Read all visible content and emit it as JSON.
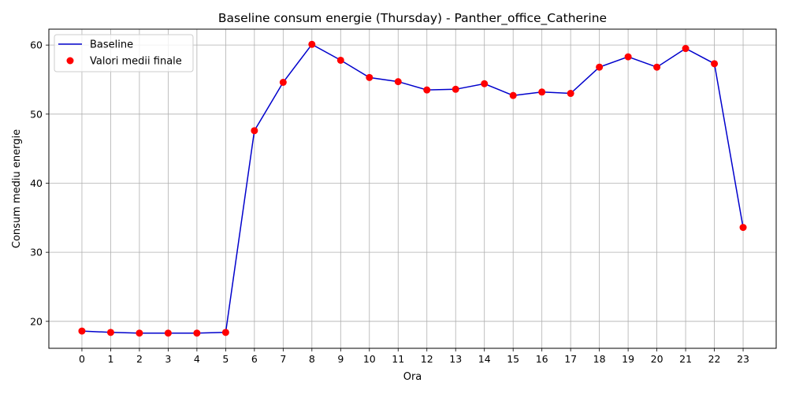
{
  "chart_data": {
    "type": "line",
    "title": "Baseline consum energie (Thursday) - Panther_office_Catherine",
    "xlabel": "Ora",
    "ylabel": "Consum mediu energie",
    "x": [
      0,
      1,
      2,
      3,
      4,
      5,
      6,
      7,
      8,
      9,
      10,
      11,
      12,
      13,
      14,
      15,
      16,
      17,
      18,
      19,
      20,
      21,
      22,
      23
    ],
    "xticks": [
      "0",
      "1",
      "2",
      "3",
      "4",
      "5",
      "6",
      "7",
      "8",
      "9",
      "10",
      "11",
      "12",
      "13",
      "14",
      "15",
      "16",
      "17",
      "18",
      "19",
      "20",
      "21",
      "22",
      "23"
    ],
    "yticks": [
      "20",
      "30",
      "40",
      "50",
      "60"
    ],
    "ytick_values": [
      20,
      30,
      40,
      50,
      60
    ],
    "xlim": [
      -1.15,
      24.15
    ],
    "ylim": [
      16.1,
      62.3
    ],
    "grid": true,
    "legend_position": "top-left",
    "series": [
      {
        "name": "Baseline",
        "kind": "line",
        "color": "#0000cc",
        "values": [
          18.6,
          18.4,
          18.3,
          18.3,
          18.3,
          18.4,
          47.6,
          54.6,
          60.1,
          57.8,
          55.3,
          54.7,
          53.5,
          53.6,
          54.4,
          52.7,
          53.2,
          53.0,
          56.8,
          58.3,
          56.8,
          59.5,
          57.3,
          33.6
        ]
      },
      {
        "name": "Valori medii finale",
        "kind": "scatter",
        "color": "#ff0000",
        "values": [
          18.6,
          18.4,
          18.3,
          18.3,
          18.3,
          18.4,
          47.6,
          54.6,
          60.1,
          57.8,
          55.3,
          54.7,
          53.5,
          53.6,
          54.4,
          52.7,
          53.2,
          53.0,
          56.8,
          58.3,
          56.8,
          59.5,
          57.3,
          33.6
        ]
      }
    ]
  }
}
